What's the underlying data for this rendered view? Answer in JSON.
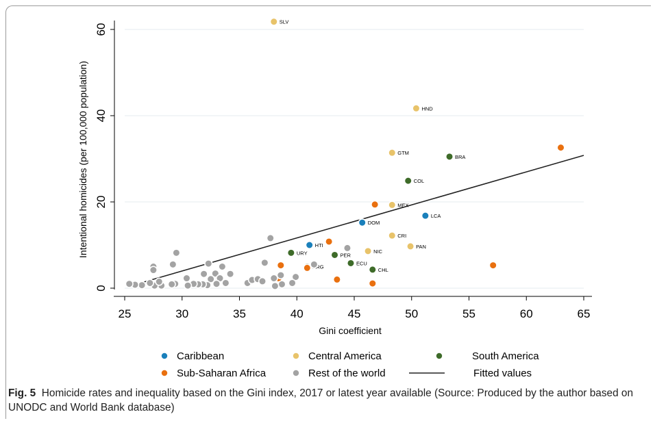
{
  "caption": {
    "label": "Fig. 5",
    "text": "Homicide rates and inequality based on the Gini index, 2017 or latest year available (Source: Produced by the author based on UNODC and World Bank database)"
  },
  "chart_data": {
    "type": "scatter",
    "xlabel": "Gini coefficient",
    "ylabel": "Intentional homicides (per 100,000 population)",
    "xlim": [
      25,
      65
    ],
    "ylim": [
      0,
      60
    ],
    "x_ticks": [
      25,
      30,
      35,
      40,
      45,
      50,
      55,
      60,
      65
    ],
    "y_ticks": [
      0,
      20,
      40,
      60
    ],
    "grid": "horizontal",
    "legend_placement": "bottom",
    "colors": {
      "Caribbean": "#1a80bb",
      "Central America": "#e8c36a",
      "South America": "#3e6b29",
      "Sub-Saharan Africa": "#e9700f",
      "Rest of the world": "#a3a3a3",
      "Fitted values": "#222222"
    },
    "series": [
      {
        "name": "Caribbean",
        "points": [
          {
            "x": 41.1,
            "y": 10.0,
            "label": "HTI"
          },
          {
            "x": 45.7,
            "y": 15.2,
            "label": "DOM"
          },
          {
            "x": 51.2,
            "y": 16.8,
            "label": "LCA"
          }
        ]
      },
      {
        "name": "Central America",
        "points": [
          {
            "x": 38.0,
            "y": 61.8,
            "label": "SLV"
          },
          {
            "x": 50.4,
            "y": 41.7,
            "label": "HND"
          },
          {
            "x": 48.3,
            "y": 31.4,
            "label": "GTM"
          },
          {
            "x": 48.3,
            "y": 19.3,
            "label": "MEX"
          },
          {
            "x": 48.3,
            "y": 12.2,
            "label": "CRI"
          },
          {
            "x": 46.2,
            "y": 8.6,
            "label": "NIC"
          },
          {
            "x": 49.9,
            "y": 9.7,
            "label": "PAN"
          }
        ]
      },
      {
        "name": "South America",
        "points": [
          {
            "x": 53.3,
            "y": 30.5,
            "label": "BRA"
          },
          {
            "x": 49.7,
            "y": 24.9,
            "label": "COL"
          },
          {
            "x": 39.5,
            "y": 8.2,
            "label": "URY"
          },
          {
            "x": 43.3,
            "y": 7.7,
            "label": "PER"
          },
          {
            "x": 44.7,
            "y": 5.8,
            "label": "ECU"
          },
          {
            "x": 46.6,
            "y": 4.3,
            "label": "CHL"
          },
          {
            "x": 40.9,
            "y": 5.0,
            "label": "ARG"
          }
        ]
      },
      {
        "name": "Sub-Saharan Africa",
        "points": [
          {
            "x": 63.0,
            "y": 32.6
          },
          {
            "x": 46.8,
            "y": 19.4
          },
          {
            "x": 42.8,
            "y": 10.8
          },
          {
            "x": 57.1,
            "y": 5.3
          },
          {
            "x": 38.6,
            "y": 5.3
          },
          {
            "x": 40.9,
            "y": 4.7
          },
          {
            "x": 43.5,
            "y": 2.0
          },
          {
            "x": 46.6,
            "y": 1.1
          },
          {
            "x": 38.4,
            "y": 2.3
          }
        ]
      },
      {
        "name": "Rest of the world",
        "points": [
          {
            "x": 37.7,
            "y": 11.6
          },
          {
            "x": 44.4,
            "y": 9.3
          },
          {
            "x": 29.5,
            "y": 8.2
          },
          {
            "x": 37.2,
            "y": 5.9
          },
          {
            "x": 33.5,
            "y": 5.0
          },
          {
            "x": 32.3,
            "y": 5.7
          },
          {
            "x": 29.2,
            "y": 5.5
          },
          {
            "x": 27.5,
            "y": 5.0
          },
          {
            "x": 27.5,
            "y": 4.2
          },
          {
            "x": 34.2,
            "y": 3.3
          },
          {
            "x": 32.9,
            "y": 3.4
          },
          {
            "x": 31.9,
            "y": 3.3
          },
          {
            "x": 30.4,
            "y": 2.3
          },
          {
            "x": 33.3,
            "y": 2.3
          },
          {
            "x": 32.5,
            "y": 2.1
          },
          {
            "x": 35.7,
            "y": 1.2
          },
          {
            "x": 36.1,
            "y": 1.9
          },
          {
            "x": 36.6,
            "y": 2.1
          },
          {
            "x": 38.0,
            "y": 2.3
          },
          {
            "x": 38.6,
            "y": 3.0
          },
          {
            "x": 39.9,
            "y": 2.6
          },
          {
            "x": 39.6,
            "y": 1.2
          },
          {
            "x": 38.7,
            "y": 0.9
          },
          {
            "x": 38.1,
            "y": 0.5
          },
          {
            "x": 33.8,
            "y": 1.2
          },
          {
            "x": 33.0,
            "y": 1.0
          },
          {
            "x": 32.2,
            "y": 0.7
          },
          {
            "x": 31.8,
            "y": 0.9
          },
          {
            "x": 31.4,
            "y": 0.9
          },
          {
            "x": 31.0,
            "y": 1.0
          },
          {
            "x": 30.5,
            "y": 0.6
          },
          {
            "x": 29.4,
            "y": 1.0
          },
          {
            "x": 29.1,
            "y": 0.9
          },
          {
            "x": 28.2,
            "y": 0.6
          },
          {
            "x": 27.6,
            "y": 0.6
          },
          {
            "x": 27.2,
            "y": 1.2
          },
          {
            "x": 26.5,
            "y": 0.7
          },
          {
            "x": 25.9,
            "y": 0.8
          },
          {
            "x": 25.4,
            "y": 1.0
          },
          {
            "x": 28.0,
            "y": 1.5
          },
          {
            "x": 41.5,
            "y": 5.5
          },
          {
            "x": 37.0,
            "y": 1.6
          }
        ]
      }
    ],
    "fitted_line": {
      "name": "Fitted values",
      "x": [
        25.2,
        65.0
      ],
      "y": [
        0.3,
        30.8
      ]
    },
    "legend": [
      "Caribbean",
      "Central America",
      "South America",
      "Sub-Saharan Africa",
      "Rest of the world",
      "Fitted values"
    ]
  }
}
